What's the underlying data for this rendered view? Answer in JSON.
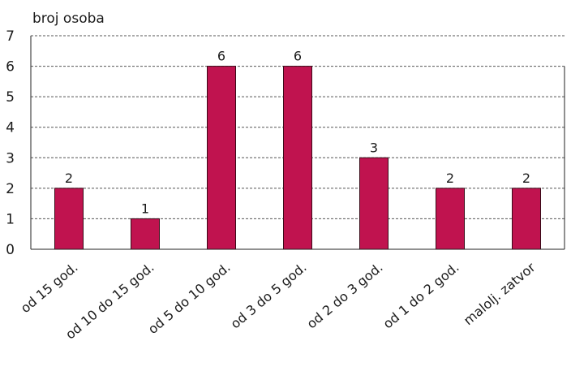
{
  "chart_data": {
    "type": "bar",
    "title": "",
    "ylabel": "broj osoba",
    "xlabel": "",
    "categories": [
      "od 15 god.",
      "od 10 do 15 god.",
      "od 5 do 10 god.",
      "od 3 do 5 god.",
      "od 2 do 3 god.",
      "od 1 do 2 god.",
      "malolj. zatvor"
    ],
    "values": [
      2,
      1,
      6,
      6,
      3,
      2,
      2
    ],
    "ylim": [
      0,
      7
    ],
    "yticks": [
      0,
      1,
      2,
      3,
      4,
      5,
      6,
      7
    ],
    "grid": "horizontal dashed",
    "legend": "none",
    "colors": {
      "bar": "#c0134f",
      "bar_border": "#3a0a18",
      "grid": "#555555",
      "axis": "#222222"
    }
  }
}
